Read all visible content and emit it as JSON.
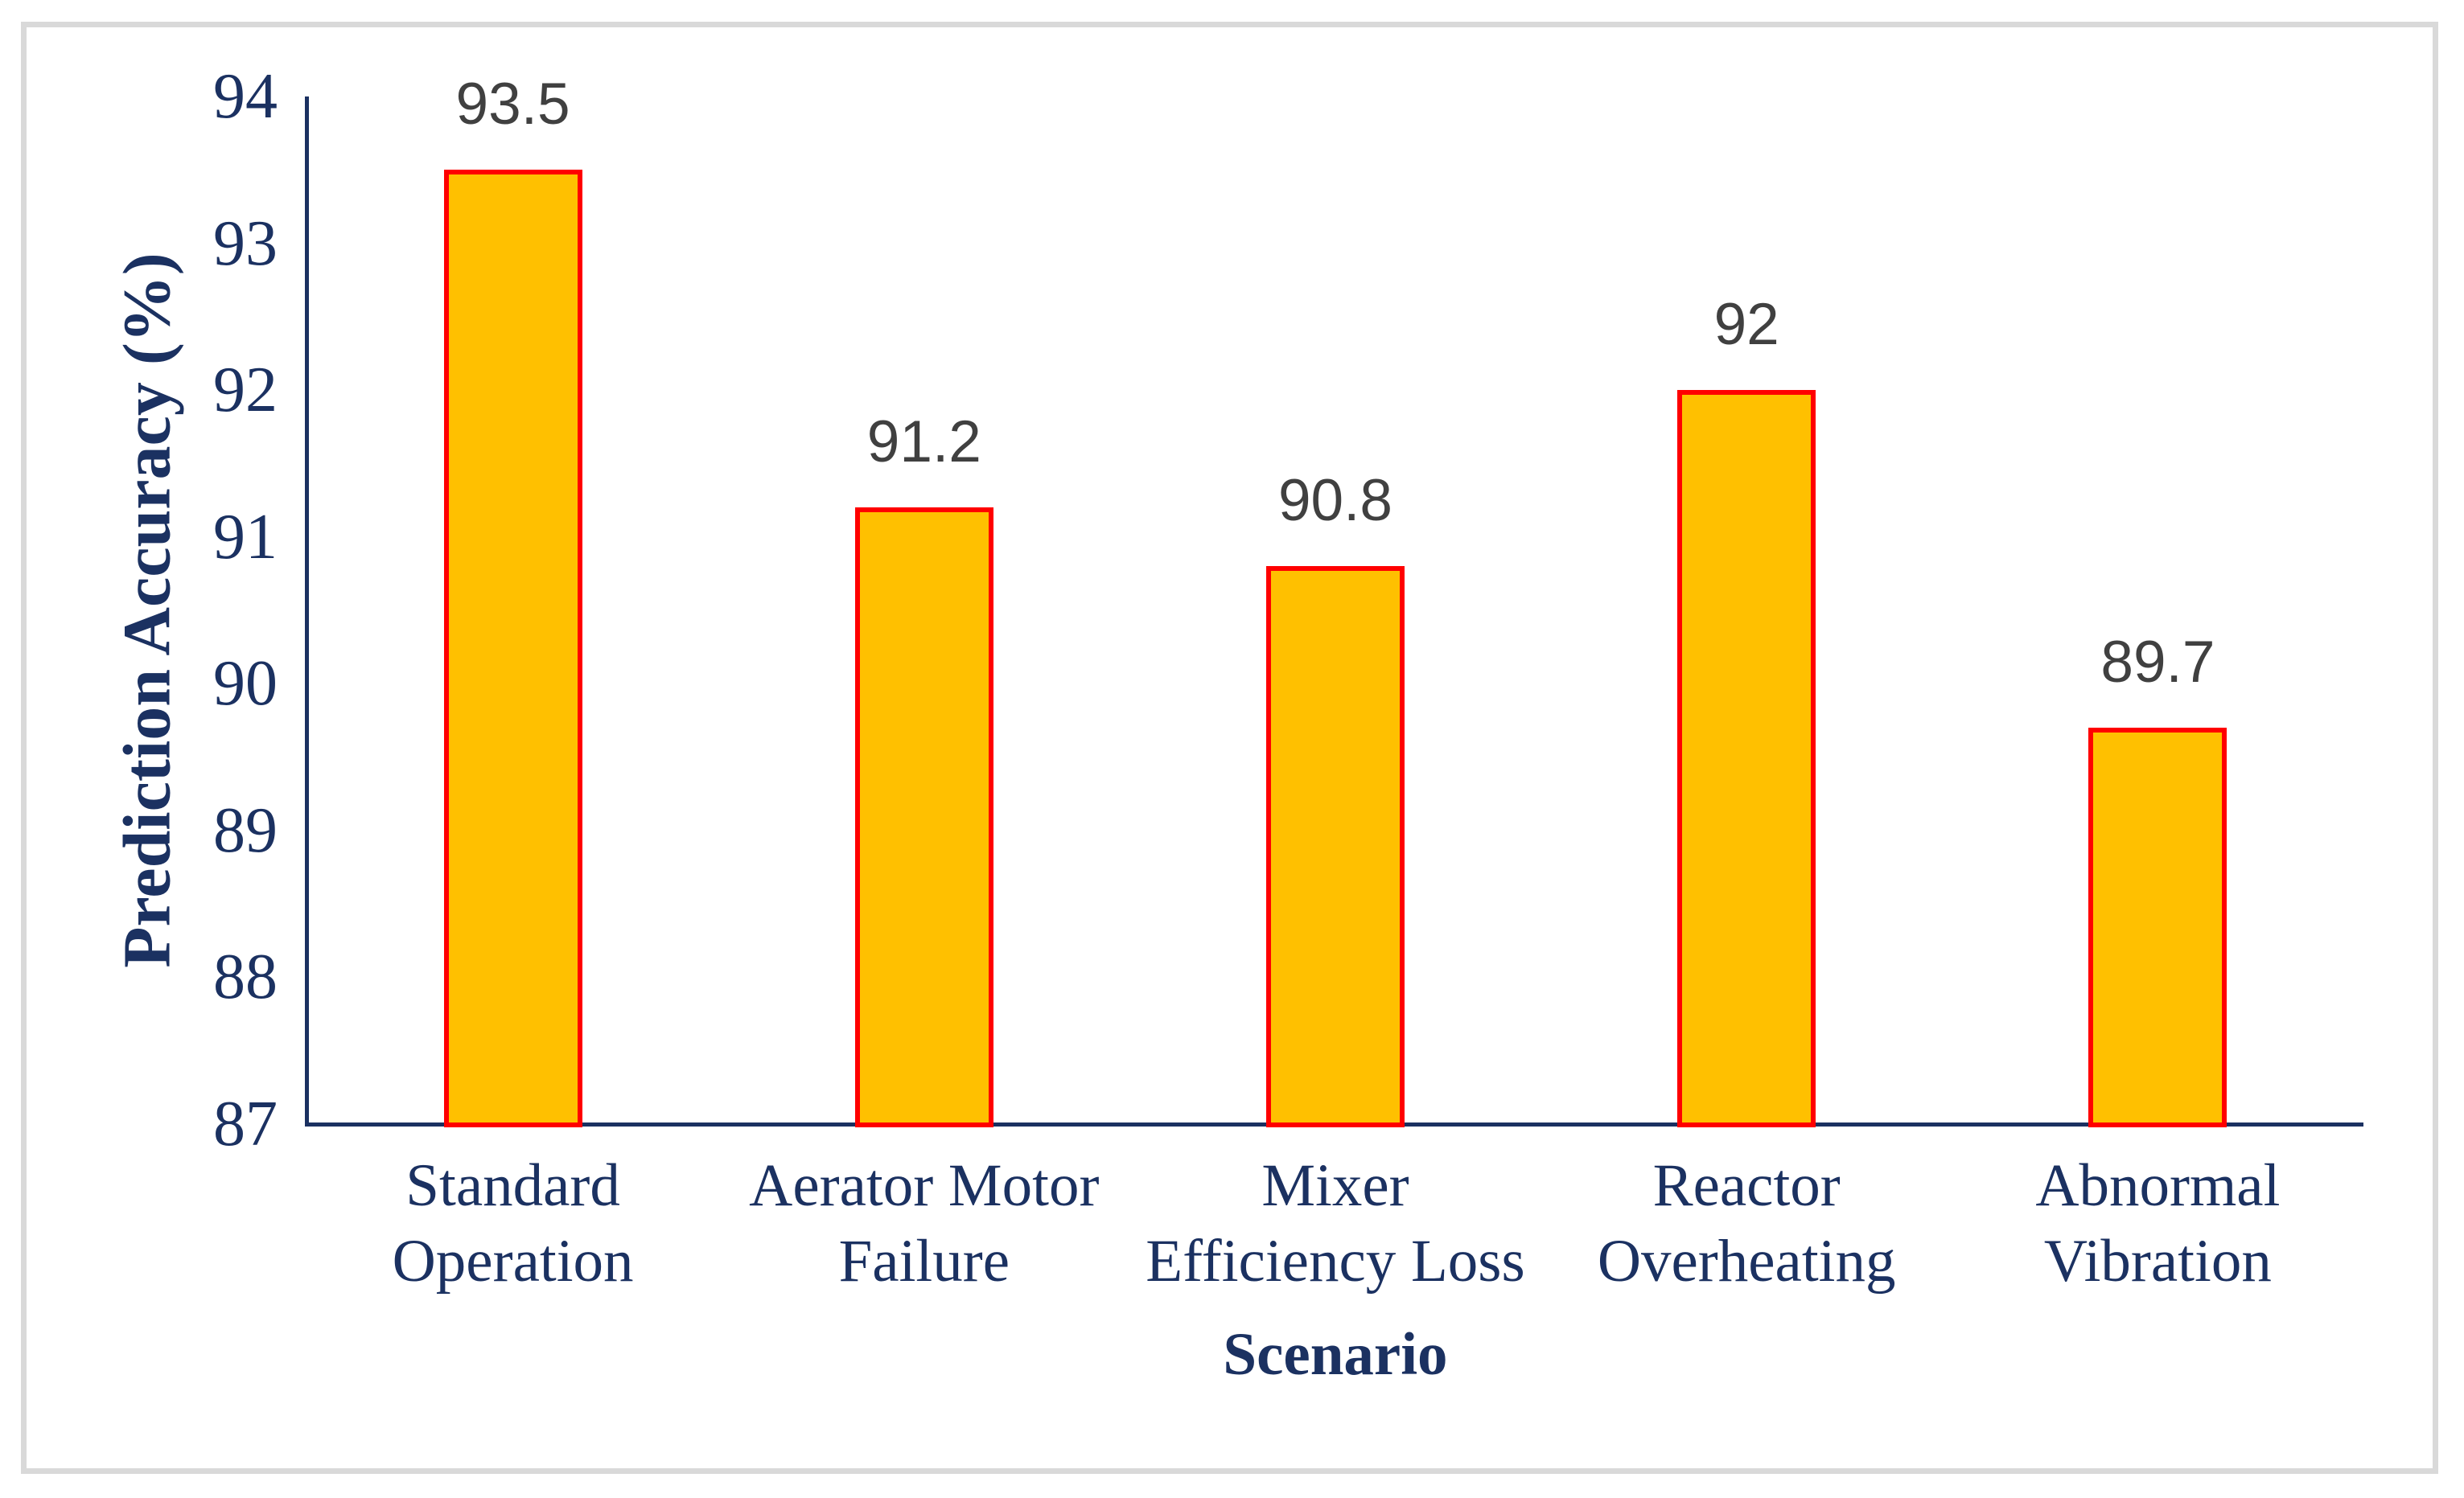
{
  "chart_data": {
    "type": "bar",
    "title": "",
    "xlabel": "Scenario",
    "ylabel": "Prediction Accuracy (%)",
    "categories": [
      "Standard Operation",
      "Aerator Motor Failure",
      "Mixer Efficiency Loss",
      "Reactor Overheating",
      "Abnormal Vibration"
    ],
    "category_lines": [
      [
        "Standard",
        "Operation"
      ],
      [
        "Aerator Motor",
        "Failure"
      ],
      [
        "Mixer",
        "Efficiency Loss"
      ],
      [
        "Reactor",
        "Overheating"
      ],
      [
        "Abnormal",
        "Vibration"
      ]
    ],
    "values": [
      93.5,
      91.2,
      90.8,
      92,
      89.7
    ],
    "value_labels": [
      "93.5",
      "91.2",
      "90.8",
      "92",
      "89.7"
    ],
    "ylim": [
      87,
      94
    ],
    "yticks": [
      94,
      93,
      92,
      91,
      90,
      89,
      88,
      87
    ],
    "grid": false,
    "legend_position": "none",
    "colors": {
      "bar_fill": "#FFC000",
      "bar_border": "#FF0000",
      "axis_text": "#1B3161",
      "axis_line": "#1B3161",
      "value_label": "#404040",
      "frame_border": "#D9D9D9",
      "background": "#FFFFFF"
    }
  }
}
